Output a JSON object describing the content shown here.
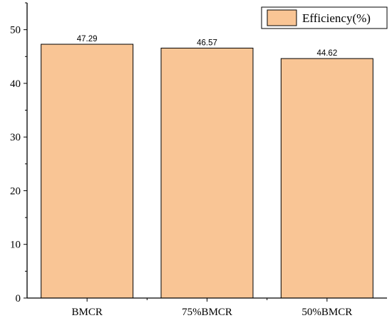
{
  "chart_data": {
    "type": "bar",
    "categories": [
      "BMCR",
      "75%BMCR",
      "50%BMCR"
    ],
    "series": [
      {
        "name": "Efficiency(%)",
        "values": [
          47.29,
          46.57,
          44.62
        ]
      }
    ],
    "data_labels": [
      "47.29",
      "46.57",
      "44.62"
    ],
    "ylim": [
      0,
      55
    ],
    "yticks": [
      0,
      10,
      20,
      30,
      40,
      50
    ],
    "grid": false,
    "legend_position": "top-right",
    "colors": {
      "bar_fill": "#F9C595",
      "bar_stroke": "#000000"
    }
  }
}
